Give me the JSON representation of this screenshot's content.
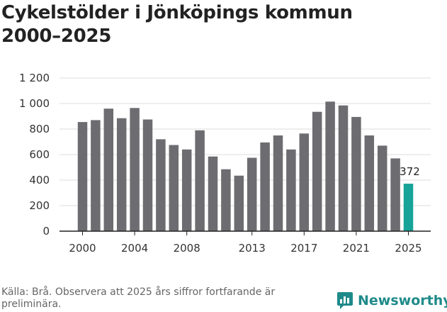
{
  "header": {
    "title_line1": "Cykelstölder i Jönköpings kommun",
    "title_line2": "2000–2025"
  },
  "footer": {
    "source": "Källa: Brå. Observera att 2025 års siffror fortfarande är preliminära.",
    "brand": "Newsworthy",
    "brand_icon": "newsworthy-logo-icon"
  },
  "colors": {
    "bar": "#6d6c70",
    "highlight": "#17a398",
    "grid": "#dddddd",
    "axis": "#222222",
    "brand": "#1f8a8a"
  },
  "chart_data": {
    "type": "bar",
    "title": "Cykelstölder i Jönköpings kommun 2000–2025",
    "xlabel": "",
    "ylabel": "",
    "ylim": [
      0,
      1200
    ],
    "yticks": [
      0,
      200,
      400,
      600,
      800,
      1000,
      1200
    ],
    "ytick_labels": [
      "0",
      "200",
      "400",
      "600",
      "800",
      "1 000",
      "1 200"
    ],
    "xtick_labels": [
      "2000",
      "2004",
      "2008",
      "2013",
      "2017",
      "2021",
      "2025"
    ],
    "grid": true,
    "categories": [
      "2000",
      "2001",
      "2002",
      "2003",
      "2004",
      "2005",
      "2006",
      "2007",
      "2008",
      "2009",
      "2010",
      "2011",
      "2012",
      "2013",
      "2014",
      "2015",
      "2016",
      "2017",
      "2018",
      "2019",
      "2020",
      "2021",
      "2022",
      "2023",
      "2024",
      "2025"
    ],
    "values": [
      855,
      870,
      960,
      885,
      965,
      875,
      720,
      675,
      640,
      790,
      585,
      485,
      435,
      575,
      695,
      750,
      640,
      765,
      935,
      1015,
      985,
      895,
      750,
      670,
      570,
      372
    ],
    "highlight": {
      "category": "2025",
      "value": 372,
      "label": "372"
    }
  }
}
